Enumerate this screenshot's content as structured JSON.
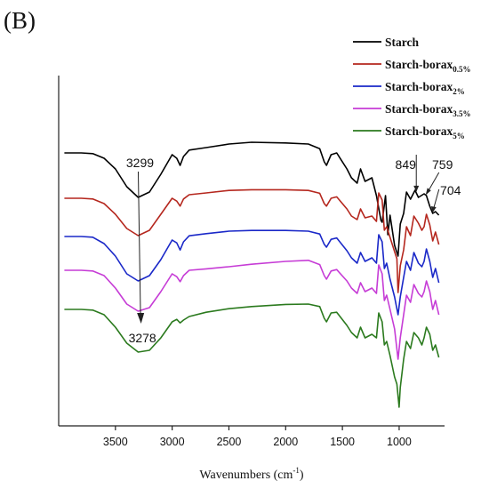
{
  "panel_label": "(B)",
  "chart_data": {
    "type": "line",
    "xlabel": "Wavenumbers (cm",
    "xlabel_sup": "-1",
    "xlabel_close": ")",
    "xlim": [
      4000,
      600
    ],
    "x_ticks": [
      3500,
      3000,
      2500,
      2000,
      1500,
      1000
    ],
    "y_axis_visible": true,
    "y_ticks": [],
    "x_reversed": true,
    "legend_position": "top-right",
    "series": [
      {
        "name": "Starch",
        "name_sub": "",
        "color": "#000000",
        "points": [
          [
            3950,
            5.0
          ],
          [
            3800,
            5.0
          ],
          [
            3700,
            5.2
          ],
          [
            3600,
            6.5
          ],
          [
            3500,
            9.5
          ],
          [
            3400,
            14.5
          ],
          [
            3300,
            17.5
          ],
          [
            3200,
            16.0
          ],
          [
            3100,
            11.0
          ],
          [
            3000,
            5.5
          ],
          [
            2960,
            6.5
          ],
          [
            2930,
            8.5
          ],
          [
            2900,
            6.0
          ],
          [
            2850,
            4.2
          ],
          [
            2700,
            3.5
          ],
          [
            2500,
            2.5
          ],
          [
            2300,
            2.0
          ],
          [
            2000,
            2.2
          ],
          [
            1800,
            2.5
          ],
          [
            1700,
            3.8
          ],
          [
            1660,
            7.5
          ],
          [
            1640,
            8.5
          ],
          [
            1600,
            5.5
          ],
          [
            1550,
            5.0
          ],
          [
            1460,
            9.5
          ],
          [
            1420,
            12.0
          ],
          [
            1370,
            13.5
          ],
          [
            1340,
            9.5
          ],
          [
            1300,
            13.0
          ],
          [
            1240,
            12.0
          ],
          [
            1200,
            17.0
          ],
          [
            1160,
            24.0
          ],
          [
            1150,
            24.5
          ],
          [
            1120,
            17.0
          ],
          [
            1100,
            28.0
          ],
          [
            1080,
            22.5
          ],
          [
            1040,
            31.0
          ],
          [
            1010,
            34.0
          ],
          [
            990,
            25.0
          ],
          [
            960,
            22.0
          ],
          [
            935,
            16.0
          ],
          [
            900,
            18.0
          ],
          [
            860,
            15.5
          ],
          [
            830,
            17.5
          ],
          [
            780,
            16.5
          ],
          [
            760,
            17.0
          ],
          [
            730,
            20.0
          ],
          [
            704,
            22.0
          ],
          [
            680,
            21.5
          ],
          [
            650,
            22.5
          ]
        ]
      },
      {
        "name": "Starch-borax",
        "name_sub": "0.5%",
        "color": "#b5271e",
        "points": [
          [
            3950,
            5.0
          ],
          [
            3800,
            5.0
          ],
          [
            3700,
            5.2
          ],
          [
            3600,
            6.5
          ],
          [
            3500,
            9.5
          ],
          [
            3400,
            13.5
          ],
          [
            3300,
            15.5
          ],
          [
            3200,
            14.0
          ],
          [
            3100,
            9.5
          ],
          [
            3000,
            5.0
          ],
          [
            2960,
            5.8
          ],
          [
            2930,
            7.2
          ],
          [
            2900,
            5.2
          ],
          [
            2850,
            4.0
          ],
          [
            2700,
            3.5
          ],
          [
            2500,
            2.8
          ],
          [
            2300,
            2.6
          ],
          [
            2000,
            2.6
          ],
          [
            1800,
            2.8
          ],
          [
            1700,
            3.6
          ],
          [
            1660,
            6.5
          ],
          [
            1640,
            7.2
          ],
          [
            1600,
            5.0
          ],
          [
            1550,
            4.6
          ],
          [
            1460,
            8.0
          ],
          [
            1420,
            10.0
          ],
          [
            1370,
            11.0
          ],
          [
            1340,
            8.0
          ],
          [
            1300,
            10.5
          ],
          [
            1240,
            10.0
          ],
          [
            1200,
            11.5
          ],
          [
            1180,
            3.5
          ],
          [
            1150,
            5.5
          ],
          [
            1130,
            14.0
          ],
          [
            1110,
            13.0
          ],
          [
            1080,
            16.0
          ],
          [
            1040,
            20.0
          ],
          [
            1020,
            22.0
          ],
          [
            1010,
            31.5
          ],
          [
            990,
            24.0
          ],
          [
            960,
            19.5
          ],
          [
            935,
            13.0
          ],
          [
            900,
            15.5
          ],
          [
            870,
            10.0
          ],
          [
            830,
            12.0
          ],
          [
            800,
            14.0
          ],
          [
            780,
            13.0
          ],
          [
            760,
            9.5
          ],
          [
            730,
            12.5
          ],
          [
            704,
            17.0
          ],
          [
            680,
            14.5
          ],
          [
            650,
            18.0
          ]
        ]
      },
      {
        "name": "Starch-borax",
        "name_sub": "2%",
        "color": "#1a28c8",
        "points": [
          [
            3950,
            5.0
          ],
          [
            3800,
            5.0
          ],
          [
            3700,
            5.2
          ],
          [
            3600,
            7.0
          ],
          [
            3500,
            10.5
          ],
          [
            3400,
            15.5
          ],
          [
            3300,
            17.5
          ],
          [
            3200,
            16.0
          ],
          [
            3100,
            11.5
          ],
          [
            3000,
            6.0
          ],
          [
            2960,
            6.8
          ],
          [
            2930,
            8.8
          ],
          [
            2900,
            6.5
          ],
          [
            2850,
            4.8
          ],
          [
            2700,
            4.2
          ],
          [
            2500,
            3.5
          ],
          [
            2300,
            3.3
          ],
          [
            2000,
            3.3
          ],
          [
            1800,
            3.5
          ],
          [
            1700,
            4.3
          ],
          [
            1660,
            7.2
          ],
          [
            1640,
            8.0
          ],
          [
            1600,
            5.8
          ],
          [
            1550,
            5.4
          ],
          [
            1460,
            9.0
          ],
          [
            1420,
            11.0
          ],
          [
            1370,
            12.5
          ],
          [
            1340,
            9.5
          ],
          [
            1300,
            12.0
          ],
          [
            1240,
            11.0
          ],
          [
            1200,
            12.5
          ],
          [
            1180,
            4.5
          ],
          [
            1150,
            6.5
          ],
          [
            1130,
            14.0
          ],
          [
            1110,
            12.5
          ],
          [
            1080,
            17.0
          ],
          [
            1040,
            22.0
          ],
          [
            1010,
            27.0
          ],
          [
            990,
            22.0
          ],
          [
            960,
            16.5
          ],
          [
            935,
            12.0
          ],
          [
            900,
            14.5
          ],
          [
            870,
            9.5
          ],
          [
            830,
            12.5
          ],
          [
            800,
            13.5
          ],
          [
            780,
            12.0
          ],
          [
            760,
            8.5
          ],
          [
            730,
            12.0
          ],
          [
            704,
            16.5
          ],
          [
            680,
            14.0
          ],
          [
            650,
            18.0
          ]
        ]
      },
      {
        "name": "Starch-borax",
        "name_sub": "3.5%",
        "color": "#c63cd6",
        "points": [
          [
            3950,
            5.0
          ],
          [
            3800,
            5.0
          ],
          [
            3700,
            5.2
          ],
          [
            3600,
            6.5
          ],
          [
            3500,
            10.0
          ],
          [
            3400,
            14.5
          ],
          [
            3300,
            16.5
          ],
          [
            3200,
            15.5
          ],
          [
            3100,
            11.0
          ],
          [
            3000,
            6.0
          ],
          [
            2960,
            6.8
          ],
          [
            2930,
            8.2
          ],
          [
            2900,
            6.5
          ],
          [
            2850,
            5.0
          ],
          [
            2700,
            4.6
          ],
          [
            2500,
            4.0
          ],
          [
            2300,
            3.3
          ],
          [
            2000,
            2.5
          ],
          [
            1800,
            2.2
          ],
          [
            1700,
            3.4
          ],
          [
            1660,
            6.5
          ],
          [
            1640,
            7.5
          ],
          [
            1600,
            5.2
          ],
          [
            1550,
            4.8
          ],
          [
            1460,
            8.0
          ],
          [
            1420,
            10.0
          ],
          [
            1370,
            11.5
          ],
          [
            1340,
            8.5
          ],
          [
            1300,
            11.0
          ],
          [
            1240,
            10.0
          ],
          [
            1200,
            11.5
          ],
          [
            1180,
            3.5
          ],
          [
            1150,
            6.0
          ],
          [
            1130,
            13.5
          ],
          [
            1110,
            12.0
          ],
          [
            1080,
            16.0
          ],
          [
            1040,
            21.5
          ],
          [
            1010,
            30.0
          ],
          [
            990,
            24.0
          ],
          [
            960,
            17.5
          ],
          [
            935,
            12.0
          ],
          [
            900,
            14.0
          ],
          [
            870,
            9.0
          ],
          [
            830,
            11.5
          ],
          [
            800,
            12.5
          ],
          [
            780,
            11.0
          ],
          [
            760,
            8.0
          ],
          [
            730,
            11.0
          ],
          [
            704,
            16.0
          ],
          [
            680,
            13.5
          ],
          [
            650,
            17.5
          ]
        ]
      },
      {
        "name": "Starch-borax",
        "name_sub": "5%",
        "color": "#2b7a1e",
        "points": [
          [
            3950,
            5.0
          ],
          [
            3800,
            5.0
          ],
          [
            3700,
            5.2
          ],
          [
            3600,
            6.5
          ],
          [
            3500,
            10.0
          ],
          [
            3400,
            14.5
          ],
          [
            3300,
            17.0
          ],
          [
            3200,
            16.5
          ],
          [
            3100,
            13.0
          ],
          [
            3000,
            8.5
          ],
          [
            2960,
            7.8
          ],
          [
            2930,
            8.8
          ],
          [
            2900,
            8.0
          ],
          [
            2850,
            7.0
          ],
          [
            2700,
            5.8
          ],
          [
            2500,
            4.8
          ],
          [
            2300,
            4.2
          ],
          [
            2000,
            3.6
          ],
          [
            1800,
            3.5
          ],
          [
            1700,
            4.2
          ],
          [
            1660,
            7.5
          ],
          [
            1640,
            8.5
          ],
          [
            1600,
            6.0
          ],
          [
            1550,
            5.8
          ],
          [
            1460,
            9.5
          ],
          [
            1420,
            11.5
          ],
          [
            1370,
            13.0
          ],
          [
            1340,
            10.0
          ],
          [
            1300,
            13.0
          ],
          [
            1240,
            12.0
          ],
          [
            1200,
            13.0
          ],
          [
            1180,
            6.0
          ],
          [
            1150,
            8.5
          ],
          [
            1130,
            15.0
          ],
          [
            1110,
            14.0
          ],
          [
            1080,
            18.0
          ],
          [
            1040,
            24.0
          ],
          [
            1020,
            26.0
          ],
          [
            1000,
            32.5
          ],
          [
            990,
            27.0
          ],
          [
            960,
            19.0
          ],
          [
            935,
            14.0
          ],
          [
            900,
            16.0
          ],
          [
            870,
            11.5
          ],
          [
            830,
            13.0
          ],
          [
            800,
            15.0
          ],
          [
            780,
            13.0
          ],
          [
            760,
            10.0
          ],
          [
            730,
            12.0
          ],
          [
            704,
            16.5
          ],
          [
            680,
            15.0
          ],
          [
            650,
            18.5
          ]
        ]
      }
    ],
    "annotations": [
      {
        "text": "3299",
        "x": 3299,
        "series_index": 0
      },
      {
        "text": "3278",
        "x": 3278,
        "series_index": 4
      },
      {
        "text": "849",
        "x": 849,
        "series_index": 0
      },
      {
        "text": "759",
        "x": 759,
        "series_index": 0
      },
      {
        "text": "704",
        "x": 704,
        "series_index": 0
      }
    ]
  }
}
